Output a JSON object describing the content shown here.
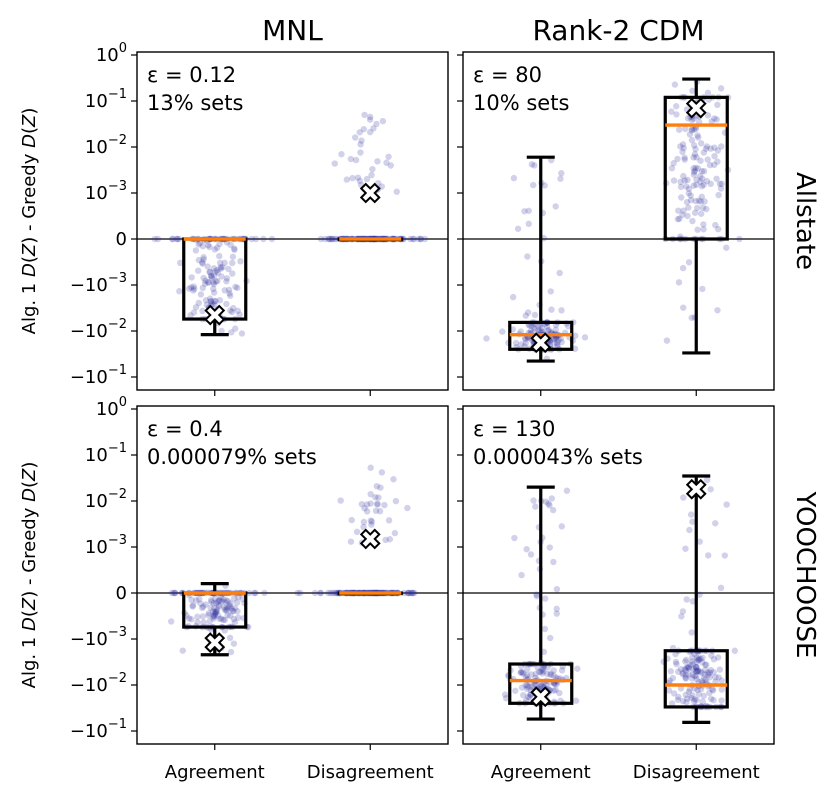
{
  "chart_data": {
    "type": "box-swarm",
    "columns": [
      "MNL",
      "Rank-2 CDM"
    ],
    "rows": [
      "Allstate",
      "YOOCHOOSE"
    ],
    "ylabel": "Alg. 1 D(Z) - Greedy D(Z)",
    "categories": [
      "Agreement",
      "Disagreement"
    ],
    "yticks": [
      {
        "label": "10",
        "exp": "0",
        "value": 1
      },
      {
        "label": "10",
        "exp": "−1",
        "value": 0.1
      },
      {
        "label": "10",
        "exp": "−2",
        "value": 0.01
      },
      {
        "label": "10",
        "exp": "−3",
        "value": 0.001
      },
      {
        "label": "0",
        "exp": "",
        "value": 0
      },
      {
        "label": "−10",
        "exp": "−3",
        "value": -0.001
      },
      {
        "label": "−10",
        "exp": "−2",
        "value": -0.01
      },
      {
        "label": "−10",
        "exp": "−1",
        "value": -0.1
      }
    ],
    "yscale": "symlog",
    "colors": {
      "points": "#2f2fa0",
      "median": "#ff7f0e",
      "box": "#000000",
      "mean_marker": "#000000"
    },
    "panels": [
      {
        "row": "Allstate",
        "col": "MNL",
        "epsilon": "ε = 0.12",
        "fraction": "13% sets",
        "boxes": [
          {
            "category": "Agreement",
            "whislo": -0.012,
            "q1": -0.0055,
            "median": 0,
            "q3": 0,
            "whishi": 0,
            "mean": -0.0045
          },
          {
            "category": "Disagreement",
            "whislo": 0,
            "q1": 0,
            "median": 0,
            "q3": 0,
            "whishi": 0,
            "mean": 0.001
          }
        ]
      },
      {
        "row": "Allstate",
        "col": "Rank-2 CDM",
        "epsilon": "ε = 80",
        "fraction": "10% sets",
        "boxes": [
          {
            "category": "Agreement",
            "whislo": -0.045,
            "q1": -0.025,
            "median": -0.012,
            "q3": -0.0065,
            "whishi": 0.006,
            "mean": -0.018
          },
          {
            "category": "Disagreement",
            "whislo": -0.03,
            "q1": 0,
            "median": 0.03,
            "q3": 0.12,
            "whishi": 0.3,
            "mean": 0.07
          }
        ]
      },
      {
        "row": "YOOCHOOSE",
        "col": "MNL",
        "epsilon": "ε = 0.4",
        "fraction": "0.000079% sets",
        "boxes": [
          {
            "category": "Agreement",
            "whislo": -0.0022,
            "q1": -0.00055,
            "median": 0,
            "q3": 0,
            "whishi": 0.00016,
            "mean": -0.0012
          },
          {
            "category": "Disagreement",
            "whislo": 0,
            "q1": 0,
            "median": 0,
            "q3": 0,
            "whishi": 0,
            "mean": 0.0015
          }
        ]
      },
      {
        "row": "YOOCHOOSE",
        "col": "Rank-2 CDM",
        "epsilon": "ε = 130",
        "fraction": "0.000043% sets",
        "boxes": [
          {
            "category": "Agreement",
            "whislo": -0.055,
            "q1": -0.025,
            "median": -0.008,
            "q3": -0.0035,
            "whishi": 0.02,
            "mean": -0.018
          },
          {
            "category": "Disagreement",
            "whislo": -0.065,
            "q1": -0.03,
            "median": -0.01,
            "q3": -0.0018,
            "whishi": 0.035,
            "mean": 0.018
          }
        ]
      }
    ]
  }
}
